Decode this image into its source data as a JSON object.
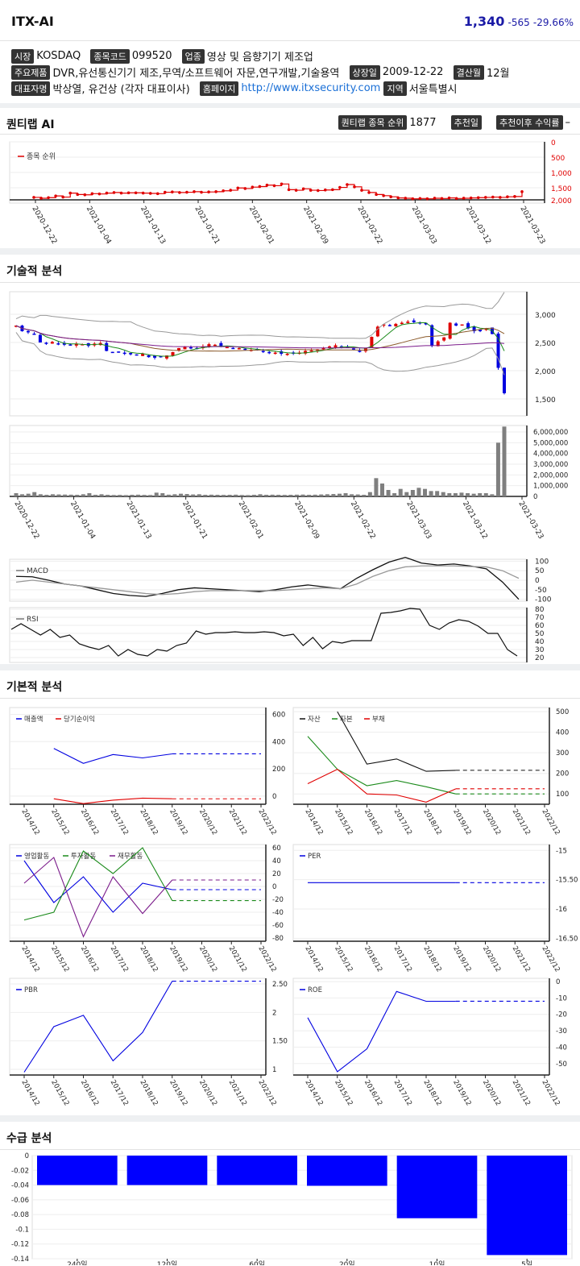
{
  "header": {
    "name": "ITX-AI",
    "price": "1,340",
    "change": "-565",
    "change_pct": "-29.66%"
  },
  "info": {
    "market_label": "시장",
    "market": "KOSDAQ",
    "code_label": "종목코드",
    "code": "099520",
    "industry_label": "업종",
    "industry": "영상 및 음향기기 제조업",
    "product_label": "주요제품",
    "product": "DVR,유선통신기기 제조,무역/소프트웨어 자문,연구개발,기술용역",
    "listing_label": "상장일",
    "listing": "2009-12-22",
    "fiscal_label": "결산월",
    "fiscal": "12월",
    "ceo_label": "대표자명",
    "ceo": "박상열, 유건상 (각자 대표이사)",
    "homepage_label": "홈페이지",
    "homepage": "http://www.itxsecurity.com",
    "region_label": "지역",
    "region": "서울특별시"
  },
  "quantilab": {
    "title": "퀀티랩 AI",
    "rank_label": "퀀티랩 종목 순위",
    "rank": "1877",
    "rec_date_label": "추천일",
    "return_label": "추천이후 수익률",
    "return_value": "–",
    "legend": "종목 순위",
    "yticks": [
      "0",
      "500",
      "1,000",
      "1,500",
      "2,000"
    ],
    "dates": [
      "2020-12-22",
      "2021-01-04",
      "2021-01-13",
      "2021-01-21",
      "2021-02-01",
      "2021-02-09",
      "2021-02-22",
      "2021-03-03",
      "2021-03-12",
      "2021-03-23"
    ]
  },
  "technical": {
    "title": "기술적 분석",
    "price_ticks": [
      "3,000",
      "2,500",
      "2,000",
      "1,500"
    ],
    "volume_ticks": [
      "6,000,000",
      "5,000,000",
      "4,000,000",
      "3,000,000",
      "2,000,000",
      "1,000,000",
      "0"
    ],
    "macd_label": "MACD",
    "macd_ticks": [
      "100",
      "50",
      "0",
      "-50",
      "-100"
    ],
    "rsi_label": "RSI",
    "rsi_ticks": [
      "80",
      "70",
      "60",
      "50",
      "40",
      "30",
      "20"
    ]
  },
  "fundamental": {
    "title": "기본적 분석",
    "years": [
      "2014/12",
      "2015/12",
      "2016/12",
      "2017/12",
      "2018/12",
      "2019/12",
      "2020/12",
      "2021/12",
      "2022/12"
    ],
    "c1_legend": [
      "매출액",
      "당기순이익"
    ],
    "c1_ticks": [
      "600",
      "400",
      "200",
      "0"
    ],
    "c2_legend": [
      "자산",
      "자본",
      "부채"
    ],
    "c2_ticks": [
      "500",
      "400",
      "300",
      "200",
      "100"
    ],
    "c3_legend": [
      "영업활동",
      "투자활동",
      "재무활동"
    ],
    "c3_ticks": [
      "60",
      "40",
      "20",
      "0",
      "-20",
      "-40",
      "-60",
      "-80"
    ],
    "c4_legend": [
      "PER"
    ],
    "c4_ticks": [
      "-15",
      "-15.50",
      "-16",
      "-16.50"
    ],
    "c5_legend": [
      "PBR"
    ],
    "c5_ticks": [
      "2.50",
      "2",
      "1.50",
      "1"
    ],
    "c6_legend": [
      "ROE"
    ],
    "c6_ticks": [
      "0",
      "-10",
      "-20",
      "-30",
      "-40",
      "-50"
    ]
  },
  "supply": {
    "title": "수급 분석",
    "yticks": [
      "0",
      "-0.02",
      "-0.04",
      "-0.06",
      "-0.08",
      "-0.1",
      "-0.12",
      "-0.14"
    ],
    "categories": [
      "240일",
      "120일",
      "60일",
      "20일",
      "10일",
      "5일"
    ],
    "values": [
      -0.04,
      -0.04,
      -0.04,
      -0.041,
      -0.085,
      -0.135
    ]
  },
  "colors": {
    "up": "#e00000",
    "down": "#0000e0",
    "accent": "#1a1aa6"
  }
}
